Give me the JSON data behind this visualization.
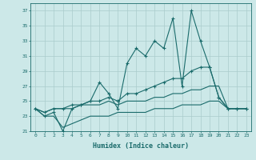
{
  "xlabel": "Humidex (Indice chaleur)",
  "x": [
    0,
    1,
    2,
    3,
    4,
    5,
    6,
    7,
    8,
    9,
    10,
    11,
    12,
    13,
    14,
    15,
    16,
    17,
    18,
    19,
    20,
    21,
    22,
    23
  ],
  "line1": [
    24,
    23,
    23.5,
    21,
    24,
    24.5,
    25,
    27.5,
    26,
    24,
    30,
    32,
    31,
    33,
    32,
    36,
    27,
    37,
    33,
    29.5,
    25.5,
    24,
    24,
    24
  ],
  "line2": [
    24,
    23.5,
    24,
    24,
    24.5,
    24.5,
    25,
    25,
    25.5,
    25,
    26,
    26,
    26.5,
    27,
    27.5,
    28,
    28,
    29,
    29.5,
    29.5,
    25.5,
    24,
    24,
    24
  ],
  "line3": [
    24,
    23.5,
    24,
    24,
    24,
    24.5,
    24.5,
    24.5,
    25,
    24.5,
    25,
    25,
    25,
    25.5,
    25.5,
    26,
    26,
    26.5,
    26.5,
    27,
    27,
    24,
    24,
    24
  ],
  "line4": [
    24,
    23,
    23,
    21.5,
    22,
    22.5,
    23,
    23,
    23,
    23.5,
    23.5,
    23.5,
    23.5,
    24,
    24,
    24,
    24.5,
    24.5,
    24.5,
    25,
    25,
    24,
    24,
    24
  ],
  "bg_color": "#cce8e8",
  "grid_color": "#aacccc",
  "line_color": "#1a6b6b",
  "ylim": [
    21,
    38
  ],
  "xlim": [
    -0.5,
    23.5
  ],
  "yticks": [
    21,
    23,
    25,
    27,
    29,
    31,
    33,
    35,
    37
  ],
  "xticks": [
    0,
    1,
    2,
    3,
    4,
    5,
    6,
    7,
    8,
    9,
    10,
    11,
    12,
    13,
    14,
    15,
    16,
    17,
    18,
    19,
    20,
    21,
    22,
    23
  ]
}
